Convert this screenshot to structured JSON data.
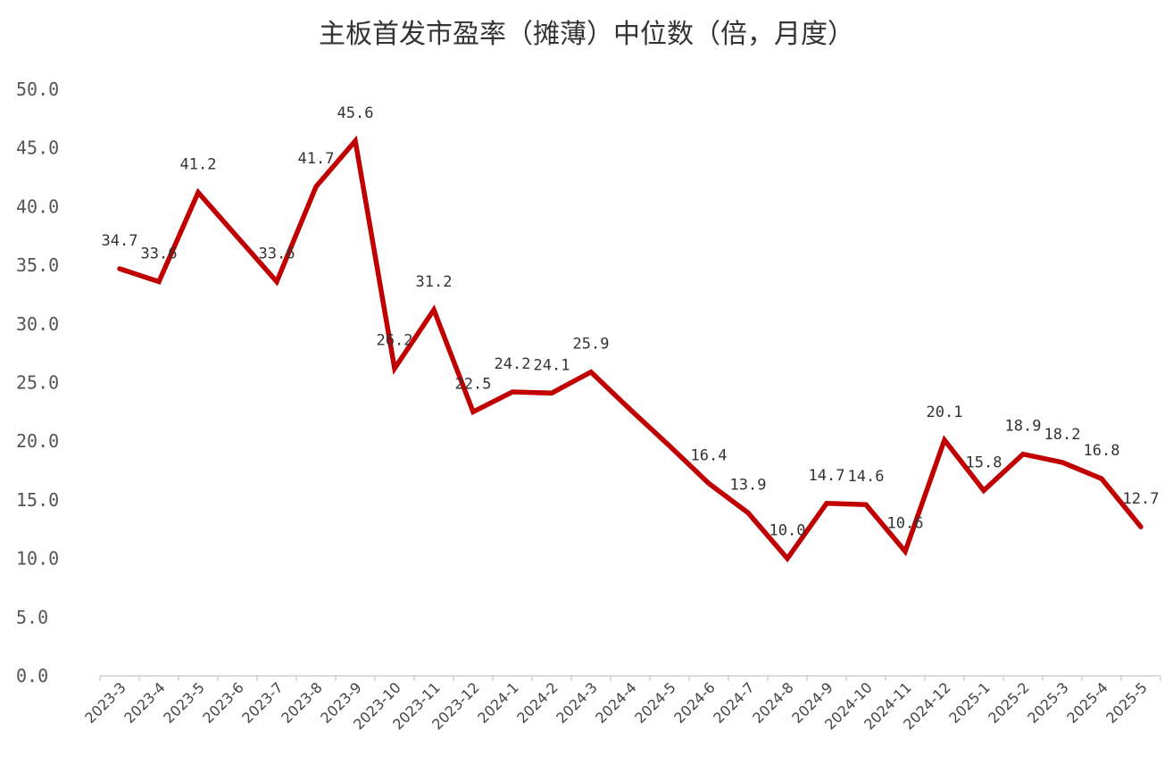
{
  "chart_data": {
    "type": "line",
    "title": "主板首发市盈率（摊薄）中位数（倍，月度）",
    "xlabel": "",
    "ylabel": "",
    "ylim": [
      0,
      50
    ],
    "yticks": [
      "0.0",
      "5.0",
      "10.0",
      "15.0",
      "20.0",
      "25.0",
      "30.0",
      "35.0",
      "40.0",
      "45.0",
      "50.0"
    ],
    "grid": false,
    "legend": "none",
    "line_color": "#C00000",
    "x": [
      "2023-3",
      "2023-4",
      "2023-5",
      "2023-6",
      "2023-7",
      "2023-8",
      "2023-9",
      "2023-10",
      "2023-11",
      "2023-12",
      "2024-1",
      "2024-2",
      "2024-3",
      "2024-4",
      "2024-5",
      "2024-6",
      "2024-7",
      "2024-8",
      "2024-9",
      "2024-10",
      "2024-11",
      "2024-12",
      "2025-1",
      "2025-2",
      "2025-3",
      "2025-4",
      "2025-5"
    ],
    "series": [
      {
        "values": [
          34.7,
          33.6,
          41.2,
          37.4,
          33.6,
          41.7,
          45.6,
          26.2,
          31.2,
          22.5,
          24.2,
          24.1,
          25.9,
          22.7,
          19.6,
          16.4,
          13.9,
          10.0,
          14.7,
          14.6,
          10.6,
          20.1,
          15.8,
          18.9,
          18.2,
          16.8,
          12.7
        ],
        "labels": [
          "34.7",
          "33.6",
          "41.2",
          "",
          "33.6",
          "41.7",
          "45.6",
          "26.2",
          "31.2",
          "22.5",
          "24.2",
          "24.1",
          "25.9",
          "",
          "",
          "16.4",
          "13.9",
          "10.0",
          "14.7",
          "14.6",
          "10.6",
          "20.1",
          "15.8",
          "18.9",
          "18.2",
          "16.8",
          "12.7"
        ]
      }
    ]
  }
}
